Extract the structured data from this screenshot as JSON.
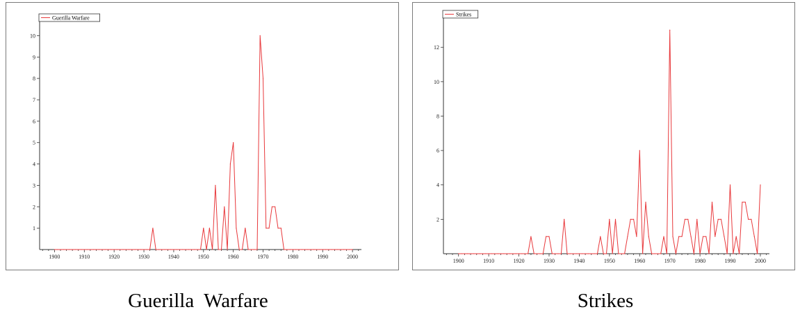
{
  "chart_data": [
    {
      "type": "line",
      "title": "",
      "xlabel": "",
      "ylabel": "",
      "xlim": [
        1895,
        2003
      ],
      "ylim": [
        0,
        10.5
      ],
      "x_ticks": [
        1900,
        1910,
        1920,
        1930,
        1940,
        1950,
        1960,
        1970,
        1980,
        1990,
        2000
      ],
      "y_ticks": [
        1,
        2,
        3,
        4,
        5,
        6,
        7,
        8,
        9,
        10
      ],
      "grid": false,
      "legend": "top-left",
      "series": [
        {
          "name": "Guerilla Warfare",
          "color": "#e8383b",
          "x": [
            1900,
            1901,
            1902,
            1903,
            1904,
            1905,
            1906,
            1907,
            1908,
            1909,
            1910,
            1911,
            1912,
            1913,
            1914,
            1915,
            1916,
            1917,
            1918,
            1919,
            1920,
            1921,
            1922,
            1923,
            1924,
            1925,
            1926,
            1927,
            1928,
            1929,
            1930,
            1931,
            1932,
            1933,
            1934,
            1935,
            1936,
            1937,
            1938,
            1939,
            1940,
            1941,
            1942,
            1943,
            1944,
            1945,
            1946,
            1947,
            1948,
            1949,
            1950,
            1951,
            1952,
            1953,
            1954,
            1955,
            1956,
            1957,
            1958,
            1959,
            1960,
            1961,
            1962,
            1963,
            1964,
            1965,
            1966,
            1967,
            1968,
            1969,
            1970,
            1971,
            1972,
            1973,
            1974,
            1975,
            1976,
            1977,
            1978,
            1979,
            1980,
            1981,
            1982,
            1983,
            1984,
            1985,
            1986,
            1987,
            1988,
            1989,
            1990,
            1991,
            1992,
            1993,
            1994,
            1995,
            1996,
            1997,
            1998,
            1999,
            2000
          ],
          "values": [
            0,
            0,
            0,
            0,
            0,
            0,
            0,
            0,
            0,
            0,
            0,
            0,
            0,
            0,
            0,
            0,
            0,
            0,
            0,
            0,
            0,
            0,
            0,
            0,
            0,
            0,
            0,
            0,
            0,
            0,
            0,
            0,
            0,
            1,
            0,
            0,
            0,
            0,
            0,
            0,
            0,
            0,
            0,
            0,
            0,
            0,
            0,
            0,
            0,
            0,
            1,
            0,
            1,
            0,
            3,
            0,
            0,
            2,
            0,
            4,
            5,
            1,
            0,
            0,
            1,
            0,
            0,
            0,
            0,
            10,
            8,
            1,
            1,
            2,
            2,
            1,
            1,
            0,
            0,
            0,
            0,
            0,
            0,
            0,
            0,
            0,
            0,
            0,
            0,
            0,
            0,
            0,
            0,
            0,
            0,
            0,
            0,
            0,
            0,
            0,
            0
          ]
        }
      ]
    },
    {
      "type": "line",
      "title": "",
      "xlabel": "",
      "ylabel": "",
      "xlim": [
        1895,
        2003
      ],
      "ylim": [
        0,
        13.5
      ],
      "x_ticks": [
        1900,
        1910,
        1920,
        1930,
        1940,
        1950,
        1960,
        1970,
        1980,
        1990,
        2000
      ],
      "y_ticks": [
        2,
        4,
        6,
        8,
        10,
        12
      ],
      "grid": false,
      "legend": "top-left",
      "series": [
        {
          "name": "Strikes",
          "color": "#e8383b",
          "x": [
            1900,
            1901,
            1902,
            1903,
            1904,
            1905,
            1906,
            1907,
            1908,
            1909,
            1910,
            1911,
            1912,
            1913,
            1914,
            1915,
            1916,
            1917,
            1918,
            1919,
            1920,
            1921,
            1922,
            1923,
            1924,
            1925,
            1926,
            1927,
            1928,
            1929,
            1930,
            1931,
            1932,
            1933,
            1934,
            1935,
            1936,
            1937,
            1938,
            1939,
            1940,
            1941,
            1942,
            1943,
            1944,
            1945,
            1946,
            1947,
            1948,
            1949,
            1950,
            1951,
            1952,
            1953,
            1954,
            1955,
            1956,
            1957,
            1958,
            1959,
            1960,
            1961,
            1962,
            1963,
            1964,
            1965,
            1966,
            1967,
            1968,
            1969,
            1970,
            1971,
            1972,
            1973,
            1974,
            1975,
            1976,
            1977,
            1978,
            1979,
            1980,
            1981,
            1982,
            1983,
            1984,
            1985,
            1986,
            1987,
            1988,
            1989,
            1990,
            1991,
            1992,
            1993,
            1994,
            1995,
            1996,
            1997,
            1998,
            1999,
            2000
          ],
          "values": [
            0,
            0,
            0,
            0,
            0,
            0,
            0,
            0,
            0,
            0,
            0,
            0,
            0,
            0,
            0,
            0,
            0,
            0,
            0,
            0,
            0,
            0,
            0,
            0,
            1,
            0,
            0,
            0,
            0,
            1,
            1,
            0,
            0,
            0,
            0,
            2,
            0,
            0,
            0,
            0,
            0,
            0,
            0,
            0,
            0,
            0,
            0,
            1,
            0,
            0,
            2,
            0,
            2,
            0,
            0,
            0,
            1,
            2,
            2,
            1,
            6,
            0,
            3,
            1,
            0,
            0,
            0,
            0,
            1,
            0,
            13,
            1,
            0,
            1,
            1,
            2,
            2,
            1,
            0,
            2,
            0,
            1,
            1,
            0,
            3,
            1,
            2,
            2,
            1,
            0,
            4,
            0,
            1,
            0,
            3,
            3,
            2,
            2,
            1,
            0,
            4
          ]
        }
      ]
    }
  ],
  "captions": {
    "left": "Guerilla  Warfare",
    "right": "Strikes"
  }
}
